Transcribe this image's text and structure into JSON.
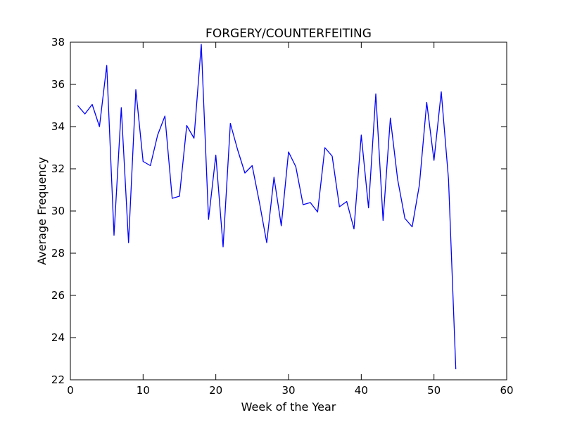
{
  "chart_data": {
    "type": "line",
    "title": "FORGERY/COUNTERFEITING",
    "xlabel": "Week of the Year",
    "ylabel": "Average Frequency",
    "xlim": [
      0,
      60
    ],
    "ylim": [
      22,
      38
    ],
    "xticks": [
      0,
      10,
      20,
      30,
      40,
      50,
      60
    ],
    "yticks": [
      22,
      24,
      26,
      28,
      30,
      32,
      34,
      36,
      38
    ],
    "grid": false,
    "legend": "none",
    "series": [
      {
        "color": "#0000ff",
        "x": [
          1,
          2,
          3,
          4,
          5,
          6,
          7,
          8,
          9,
          10,
          11,
          12,
          13,
          14,
          15,
          16,
          17,
          18,
          19,
          20,
          21,
          22,
          23,
          24,
          25,
          26,
          27,
          28,
          29,
          30,
          31,
          32,
          33,
          34,
          35,
          36,
          37,
          38,
          39,
          40,
          41,
          42,
          43,
          44,
          45,
          46,
          47,
          48,
          49,
          50,
          51,
          52,
          53
        ],
        "y": [
          35.0,
          34.6,
          35.05,
          34.0,
          36.9,
          28.85,
          34.9,
          28.5,
          35.75,
          32.35,
          32.15,
          33.6,
          34.5,
          30.6,
          30.7,
          34.05,
          33.45,
          37.9,
          29.6,
          32.65,
          28.3,
          34.15,
          32.9,
          31.8,
          32.15,
          30.4,
          28.5,
          31.6,
          29.3,
          32.8,
          32.1,
          30.3,
          30.4,
          29.95,
          33.0,
          32.6,
          30.2,
          30.45,
          29.15,
          33.6,
          30.15,
          35.55,
          29.55,
          34.4,
          31.5,
          29.65,
          29.25,
          31.25,
          35.15,
          32.4,
          35.65,
          31.5,
          22.5
        ]
      }
    ]
  }
}
